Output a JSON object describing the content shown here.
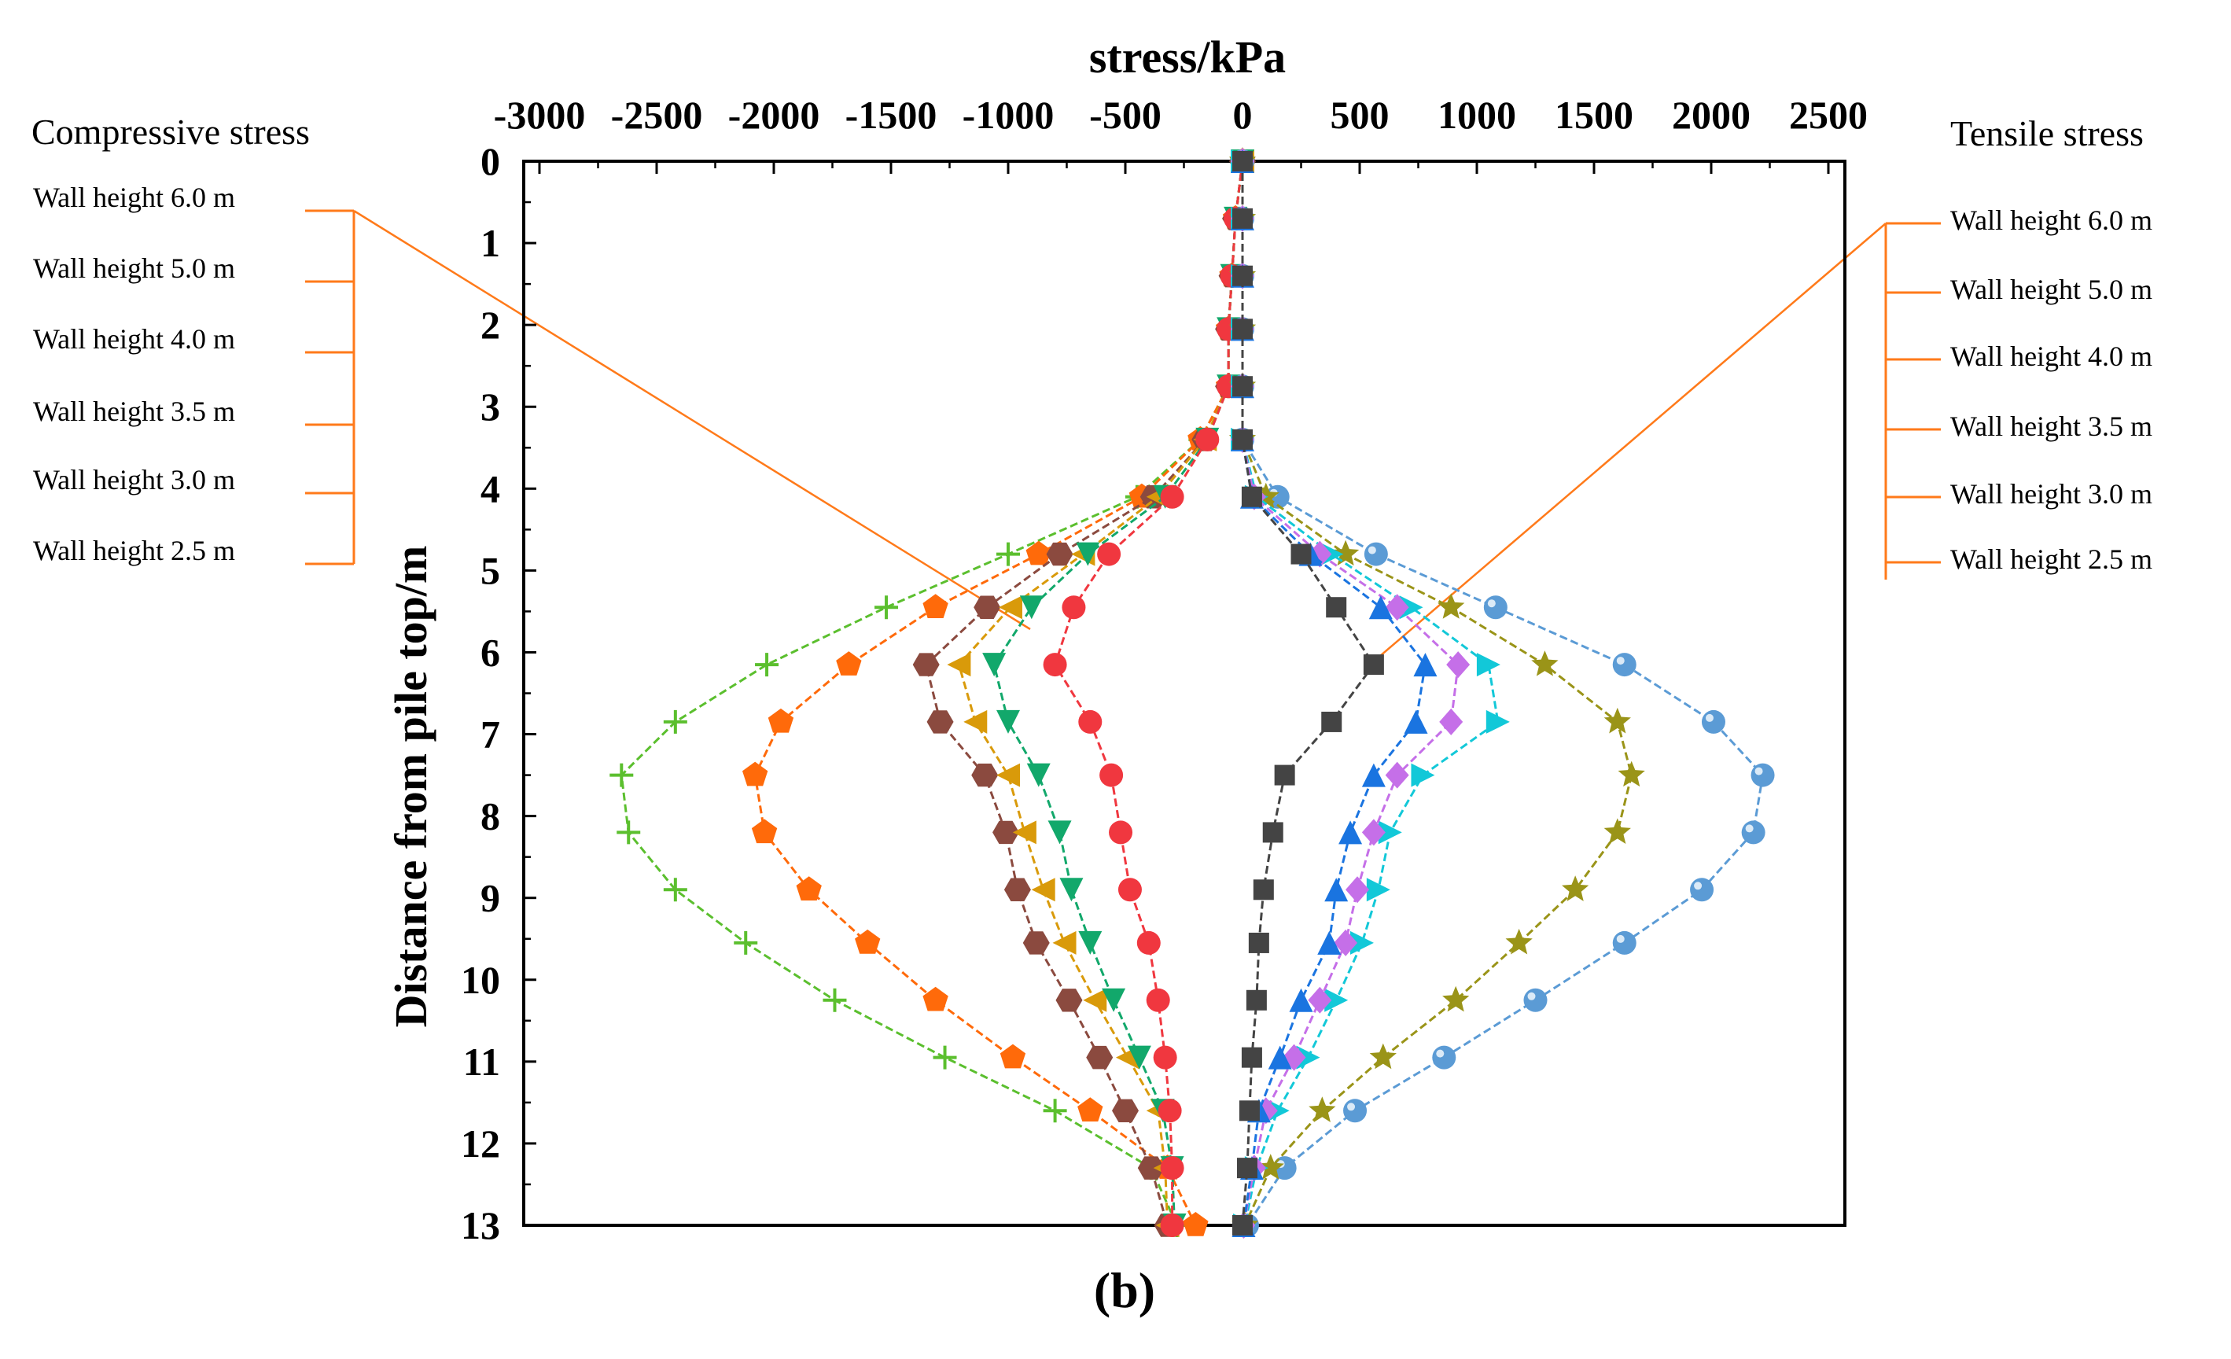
{
  "chart_data": {
    "type": "line",
    "title": "stress/kPa",
    "xlabel": "stress/kPa",
    "ylabel": "Distance from pile top/m",
    "caption": "(b)",
    "xlim": [
      -3000,
      2500
    ],
    "ylim": [
      0,
      13
    ],
    "x_ticks": [
      -3000,
      -2500,
      -2000,
      -1500,
      -1000,
      -500,
      0,
      500,
      1000,
      1500,
      2000,
      2500
    ],
    "y_ticks": [
      0,
      1,
      2,
      3,
      4,
      5,
      6,
      7,
      8,
      9,
      10,
      11,
      12,
      13
    ],
    "depths": [
      0,
      0.7,
      1.4,
      2.05,
      2.75,
      3.4,
      4.1,
      4.8,
      5.45,
      6.15,
      6.85,
      7.5,
      8.2,
      8.9,
      9.55,
      10.25,
      10.95,
      11.6,
      12.3,
      13.0
    ],
    "compressive_legend_title": "Compressive stress",
    "tensile_legend_title": "Tensile stress",
    "compressive_series": [
      {
        "name": "Wall height 6.0 m",
        "color": "#5bbf2e",
        "marker": "plus",
        "values": [
          0,
          -30,
          -45,
          -60,
          -60,
          -180,
          -450,
          -1000,
          -1520,
          -2030,
          -2420,
          -2650,
          -2620,
          -2420,
          -2120,
          -1740,
          -1270,
          -800,
          -390,
          -280
        ]
      },
      {
        "name": "Wall height 5.0 m",
        "color": "#ff6a0a",
        "marker": "pentagon",
        "values": [
          0,
          -30,
          -45,
          -60,
          -60,
          -180,
          -430,
          -870,
          -1310,
          -1680,
          -1970,
          -2080,
          -2040,
          -1850,
          -1600,
          -1310,
          -980,
          -650,
          -320,
          -200
        ]
      },
      {
        "name": "Wall height 4.0 m",
        "color": "#8b4a3f",
        "marker": "hexagon",
        "values": [
          0,
          -30,
          -45,
          -60,
          -60,
          -160,
          -380,
          -780,
          -1090,
          -1350,
          -1290,
          -1100,
          -1010,
          -960,
          -880,
          -740,
          -610,
          -500,
          -390,
          -320
        ]
      },
      {
        "name": "Wall height 3.5 m",
        "color": "#d99a0a",
        "marker": "triangle-left",
        "values": [
          0,
          -30,
          -45,
          -60,
          -60,
          -160,
          -360,
          -680,
          -990,
          -1210,
          -1140,
          -1000,
          -930,
          -850,
          -760,
          -630,
          -490,
          -360,
          -330,
          -320
        ]
      },
      {
        "name": "Wall height 3.0 m",
        "color": "#12a86b",
        "marker": "triangle-down",
        "values": [
          0,
          -30,
          -45,
          -60,
          -60,
          -150,
          -330,
          -660,
          -900,
          -1060,
          -1000,
          -870,
          -780,
          -730,
          -650,
          -550,
          -440,
          -340,
          -300,
          -290
        ]
      },
      {
        "name": "Wall height 2.5 m",
        "color": "#f0373f",
        "marker": "circle",
        "values": [
          0,
          -30,
          -45,
          -60,
          -60,
          -150,
          -300,
          -570,
          -720,
          -800,
          -650,
          -560,
          -520,
          -480,
          -400,
          -360,
          -330,
          -310,
          -300,
          -300
        ]
      }
    ],
    "tensile_series": [
      {
        "name": "Wall height 6.0 m",
        "color": "#5b9bd5",
        "marker": "ball",
        "values": [
          0,
          0,
          0,
          0,
          0,
          0,
          150,
          570,
          1080,
          1630,
          2010,
          2220,
          2180,
          1960,
          1630,
          1250,
          860,
          480,
          180,
          20
        ]
      },
      {
        "name": "Wall height 5.0 m",
        "color": "#9a9418",
        "marker": "star",
        "values": [
          0,
          0,
          0,
          0,
          0,
          0,
          100,
          440,
          890,
          1290,
          1600,
          1660,
          1600,
          1420,
          1180,
          910,
          600,
          340,
          120,
          10
        ]
      },
      {
        "name": "Wall height 4.0 m",
        "color": "#12c8d8",
        "marker": "triangle-right",
        "values": [
          0,
          0,
          0,
          0,
          0,
          0,
          60,
          380,
          720,
          1050,
          1090,
          770,
          630,
          580,
          510,
          400,
          280,
          150,
          60,
          10
        ]
      },
      {
        "name": "Wall height 3.5 m",
        "color": "#c56fe8",
        "marker": "diamond",
        "values": [
          0,
          0,
          0,
          0,
          0,
          0,
          50,
          330,
          660,
          920,
          890,
          660,
          560,
          490,
          440,
          330,
          220,
          100,
          50,
          5
        ]
      },
      {
        "name": "Wall height 3.0 m",
        "color": "#1a74e0",
        "marker": "triangle-up",
        "values": [
          0,
          0,
          0,
          0,
          0,
          0,
          40,
          290,
          590,
          780,
          740,
          560,
          460,
          400,
          370,
          250,
          160,
          70,
          40,
          5
        ]
      },
      {
        "name": "Wall height 2.5 m",
        "color": "#444444",
        "marker": "square",
        "values": [
          0,
          0,
          0,
          0,
          0,
          0,
          40,
          250,
          400,
          560,
          380,
          180,
          130,
          90,
          70,
          60,
          40,
          30,
          20,
          0
        ]
      }
    ]
  }
}
